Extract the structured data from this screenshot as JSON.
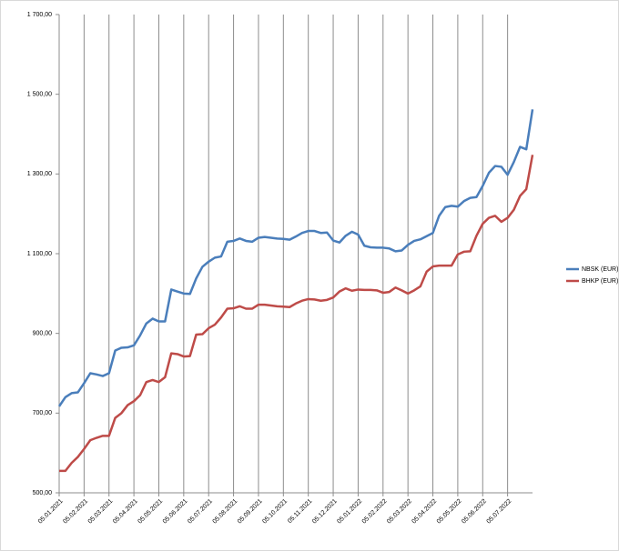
{
  "chart_data": {
    "type": "line",
    "categories": [
      "05.01.2021",
      null,
      null,
      null,
      "05.02.2021",
      null,
      null,
      null,
      "05.03.2021",
      null,
      null,
      null,
      "05.04.2021",
      null,
      null,
      null,
      "05.05.2021",
      null,
      null,
      null,
      "05.06.2021",
      null,
      null,
      null,
      "05.07.2021",
      null,
      null,
      null,
      "05.08.2021",
      null,
      null,
      null,
      "05.09.2021",
      null,
      null,
      null,
      "05.10.2021",
      null,
      null,
      null,
      "05.11.2021",
      null,
      null,
      null,
      "05.12.2021",
      null,
      null,
      null,
      "05.01.2022",
      null,
      null,
      null,
      "05.02.2022",
      null,
      null,
      null,
      "05.03.2022",
      null,
      null,
      null,
      "05.04.2022",
      null,
      null,
      null,
      "05.05.2022",
      null,
      null,
      null,
      "05.06.2022",
      null,
      null,
      null,
      "05.07.2022",
      null,
      null,
      null,
      null
    ],
    "series": [
      {
        "name": "NBSK (EUR)",
        "color": "#4a7ebb",
        "values": [
          717,
          740,
          750,
          752,
          775,
          800,
          797,
          793,
          800,
          857,
          864,
          865,
          870,
          895,
          925,
          937,
          930,
          930,
          1010,
          1005,
          1000,
          999,
          1038,
          1067,
          1080,
          1090,
          1093,
          1130,
          1132,
          1138,
          1132,
          1130,
          1140,
          1142,
          1140,
          1138,
          1137,
          1135,
          1143,
          1152,
          1157,
          1157,
          1152,
          1153,
          1133,
          1128,
          1145,
          1155,
          1148,
          1120,
          1116,
          1115,
          1115,
          1113,
          1106,
          1108,
          1122,
          1132,
          1136,
          1144,
          1152,
          1195,
          1217,
          1220,
          1218,
          1232,
          1240,
          1242,
          1270,
          1303,
          1320,
          1318,
          1298,
          1330,
          1368,
          1362,
          1462
        ]
      },
      {
        "name": "BHKP (EUR)",
        "color": "#be4b48",
        "values": [
          555,
          555,
          575,
          590,
          610,
          632,
          638,
          643,
          643,
          688,
          700,
          720,
          730,
          745,
          778,
          783,
          778,
          790,
          850,
          848,
          842,
          843,
          897,
          898,
          913,
          922,
          940,
          962,
          963,
          968,
          962,
          962,
          972,
          972,
          970,
          968,
          967,
          966,
          975,
          982,
          986,
          985,
          982,
          984,
          990,
          1005,
          1013,
          1007,
          1010,
          1009,
          1009,
          1008,
          1002,
          1004,
          1015,
          1008,
          1000,
          1008,
          1018,
          1055,
          1068,
          1070,
          1070,
          1070,
          1098,
          1105,
          1106,
          1145,
          1175,
          1190,
          1195,
          1180,
          1190,
          1210,
          1245,
          1262,
          1348
        ]
      }
    ],
    "ylim": [
      500,
      1700
    ],
    "yticks": [
      {
        "value": 500,
        "label": "500,00"
      },
      {
        "value": 700,
        "label": "700,00"
      },
      {
        "value": 900,
        "label": "900,00"
      },
      {
        "value": 1100,
        "label": "1 100,00"
      },
      {
        "value": 1300,
        "label": "1 300,00"
      },
      {
        "value": 1500,
        "label": "1 500,00"
      },
      {
        "value": 1700,
        "label": "1 700,00"
      }
    ],
    "legend": "right",
    "grid": true
  }
}
